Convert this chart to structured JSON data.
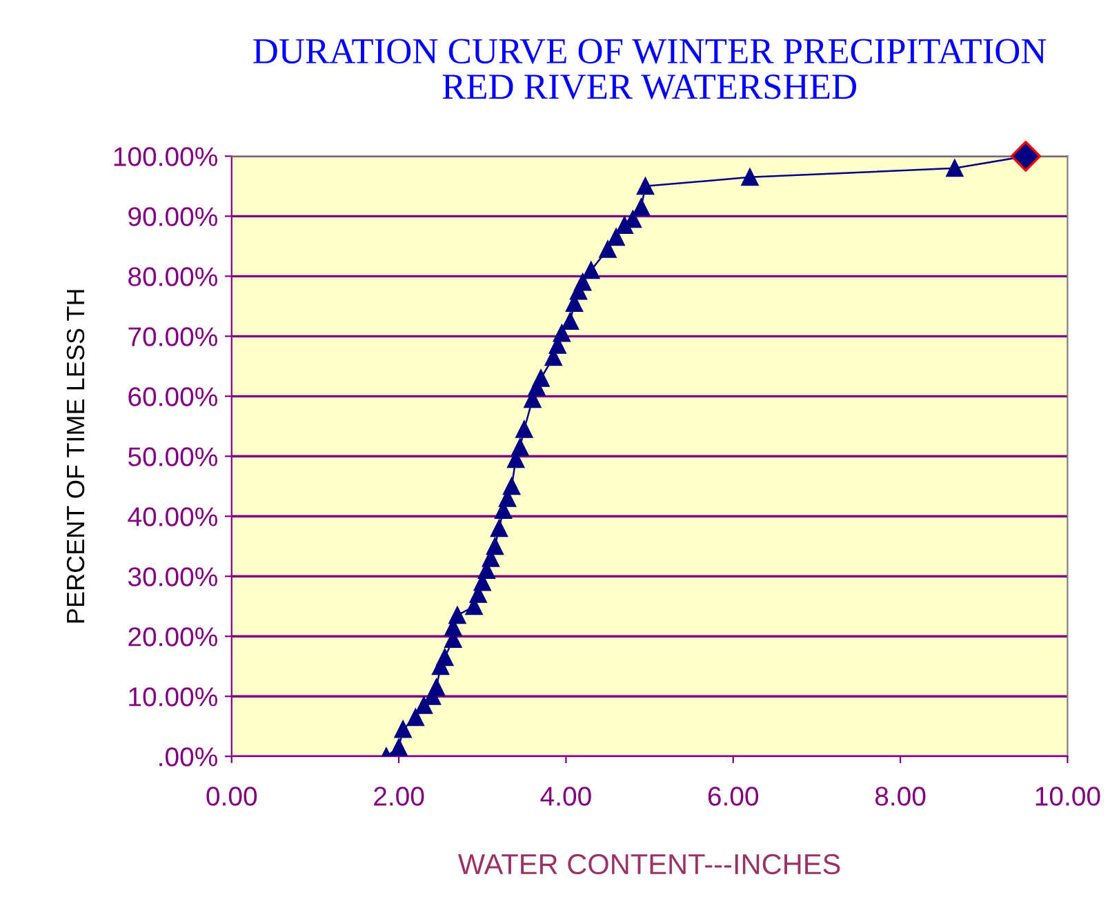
{
  "chart_data": {
    "type": "line",
    "title": "DURATION CURVE OF WINTER PRECIPITATION\nRED RIVER WATERSHED",
    "xlabel": "WATER CONTENT---INCHES",
    "ylabel": "PERCENT OF TIME LESS TH",
    "series": [
      {
        "color": "#000080",
        "marker": "triangle",
        "x": [
          1.85,
          2.0,
          2.05,
          2.2,
          2.3,
          2.4,
          2.45,
          2.5,
          2.55,
          2.65,
          2.65,
          2.7,
          2.9,
          2.95,
          3.0,
          3.05,
          3.1,
          3.15,
          3.2,
          3.25,
          3.3,
          3.35,
          3.4,
          3.45,
          3.5,
          3.6,
          3.65,
          3.7,
          3.85,
          3.9,
          3.95,
          4.05,
          4.1,
          4.15,
          4.2,
          4.3,
          4.5,
          4.6,
          4.7,
          4.8,
          4.9,
          4.95,
          6.2,
          8.65,
          9.5
        ],
        "values": [
          0,
          1.5,
          4.5,
          6.5,
          8.5,
          10,
          11.5,
          15,
          16.5,
          19.5,
          21.5,
          23.5,
          25,
          27,
          29,
          31,
          33,
          35,
          38,
          41,
          43,
          45,
          49.5,
          51.5,
          54.5,
          59.5,
          61.5,
          63,
          66.5,
          68.5,
          70.5,
          72.5,
          75.5,
          77.5,
          79,
          81,
          84.5,
          86.5,
          88.5,
          89.5,
          91.5,
          95,
          96.5,
          98,
          100
        ]
      },
      {
        "type": "scatter",
        "color": "#000080",
        "marker": "diamond",
        "x": [
          9.5
        ],
        "values": [
          100
        ]
      }
    ],
    "xlim": [
      0,
      10
    ],
    "xticks": [
      {
        "value": 0,
        "label": "0.00"
      },
      {
        "value": 2,
        "label": "2.00"
      },
      {
        "value": 4,
        "label": "4.00"
      },
      {
        "value": 6,
        "label": "6.00"
      },
      {
        "value": 8,
        "label": "8.00"
      },
      {
        "value": 10,
        "label": "10.00"
      }
    ],
    "ylim": [
      0,
      100
    ],
    "yticks": [
      {
        "value": 0,
        "label": ".00%"
      },
      {
        "value": 10,
        "label": "10.00%"
      },
      {
        "value": 20,
        "label": "20.00%"
      },
      {
        "value": 30,
        "label": "30.00%"
      },
      {
        "value": 40,
        "label": "40.00%"
      },
      {
        "value": 50,
        "label": "50.00%"
      },
      {
        "value": 60,
        "label": "60.00%"
      },
      {
        "value": 70,
        "label": "70.00%"
      },
      {
        "value": 80,
        "label": "80.00%"
      },
      {
        "value": 90,
        "label": "90.00%"
      },
      {
        "value": 100,
        "label": "100.00%"
      }
    ],
    "grid": "y",
    "line_style": "solid"
  }
}
